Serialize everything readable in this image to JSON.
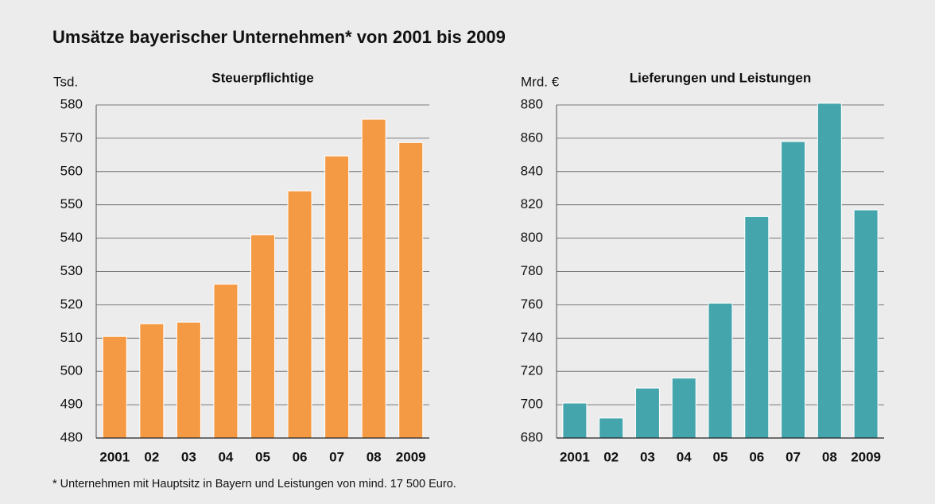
{
  "title": "Umsätze bayerischer Unternehmen* von 2001 bis 2009",
  "footnote": "* Unternehmen mit Hauptsitz in Bayern und Leistungen von mind. 17 500 Euro.",
  "chart_data": [
    {
      "type": "bar",
      "title": "Steuerpflichtige",
      "ylabel": "Tsd.",
      "categories": [
        "2001",
        "02",
        "03",
        "04",
        "05",
        "06",
        "07",
        "08",
        "2009"
      ],
      "values": [
        510.5,
        514.3,
        514.8,
        526.2,
        541,
        554.2,
        564.7,
        575.7,
        568.7
      ],
      "color": "#f59a44",
      "ylim": [
        480,
        580
      ],
      "yticks": [
        480,
        490,
        500,
        510,
        520,
        530,
        540,
        550,
        560,
        570,
        580
      ],
      "grid": true
    },
    {
      "type": "bar",
      "title": "Lieferungen und Leistungen",
      "ylabel": "Mrd. €",
      "categories": [
        "2001",
        "02",
        "03",
        "04",
        "05",
        "06",
        "07",
        "08",
        "2009"
      ],
      "values": [
        701,
        692,
        710,
        716,
        761,
        813,
        858,
        881,
        817
      ],
      "color": "#45a5ad",
      "ylim": [
        680,
        880
      ],
      "yticks": [
        680,
        700,
        720,
        740,
        760,
        780,
        800,
        820,
        840,
        860,
        880
      ],
      "grid": true
    }
  ]
}
